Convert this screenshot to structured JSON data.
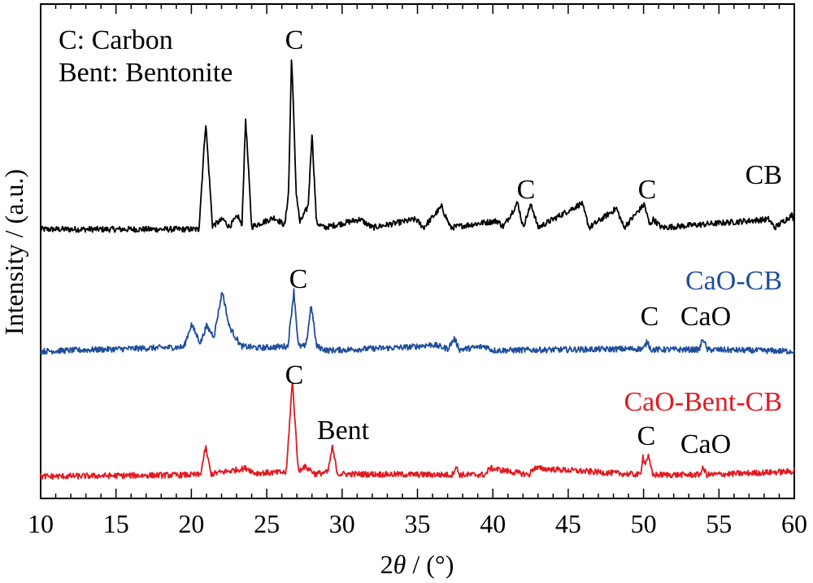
{
  "chart_data": {
    "type": "line",
    "xlabel_prefix": "2",
    "xlabel_theta": "θ",
    "xlabel_suffix": " / (°)",
    "ylabel": "Intensity / (a.u.)",
    "xlim": [
      10,
      60
    ],
    "xticks": [
      "10",
      "15",
      "20",
      "25",
      "30",
      "35",
      "40",
      "45",
      "50",
      "55",
      "60"
    ],
    "legend_note": [
      "C: Carbon",
      "Bent: Bentonite"
    ],
    "series": [
      {
        "name": "CB",
        "color": "#000000",
        "x": [
          10.0,
          20.5,
          20.95,
          21.4,
          22.1,
          22.5,
          23.1,
          23.35,
          23.6,
          24.0,
          25.5,
          26.2,
          26.45,
          26.65,
          26.95,
          27.2,
          27.75,
          28.0,
          28.3,
          28.8,
          31.2,
          32.0,
          34.9,
          35.4,
          36.6,
          37.2,
          39.4,
          40.3,
          40.7,
          41.65,
          42.0,
          42.55,
          43.0,
          45.9,
          46.4,
          48.2,
          48.7,
          50.05,
          50.4,
          50.65,
          51.2,
          58.3,
          58.7,
          59.85,
          60.0
        ],
        "y": [
          0.0,
          0.0,
          1.28,
          0.04,
          0.12,
          0.03,
          0.16,
          0.03,
          1.32,
          0.03,
          0.14,
          0.05,
          0.45,
          2.1,
          0.45,
          0.08,
          0.28,
          1.15,
          0.08,
          0.02,
          0.12,
          0.02,
          0.12,
          0.02,
          0.27,
          0.02,
          0.08,
          0.1,
          0.03,
          0.32,
          0.03,
          0.3,
          0.02,
          0.31,
          0.02,
          0.25,
          0.02,
          0.3,
          0.05,
          0.12,
          0.02,
          0.12,
          0.02,
          0.17,
          0.1
        ]
      },
      {
        "name": "CaO-CB",
        "color": "#1f4e9c",
        "x": [
          10.0,
          19.5,
          20.0,
          20.6,
          21.0,
          21.5,
          22.05,
          22.5,
          23.3,
          24.5,
          26.4,
          26.8,
          27.1,
          27.6,
          27.95,
          28.3,
          29.0,
          34.5,
          36.0,
          37.0,
          37.45,
          37.8,
          39.5,
          40.0,
          50.0,
          50.25,
          50.5,
          53.7,
          53.95,
          54.2,
          60.0
        ],
        "y": [
          0.0,
          0.05,
          0.32,
          0.1,
          0.3,
          0.18,
          0.72,
          0.3,
          0.06,
          0.04,
          0.06,
          0.72,
          0.06,
          0.06,
          0.56,
          0.06,
          0.01,
          0.05,
          0.08,
          0.03,
          0.15,
          0.02,
          0.06,
          0.01,
          0.03,
          0.12,
          0.02,
          0.02,
          0.16,
          0.02,
          0.0
        ]
      },
      {
        "name": "CaO-Bent-CB",
        "color": "#e11a22",
        "x": [
          10.0,
          20.6,
          20.95,
          21.3,
          23.0,
          23.7,
          24.2,
          26.3,
          26.7,
          27.1,
          27.4,
          27.9,
          28.2,
          29.05,
          29.35,
          29.7,
          37.3,
          37.55,
          37.8,
          39.5,
          39.8,
          42.4,
          42.7,
          49.8,
          49.95,
          50.1,
          50.3,
          50.6,
          53.7,
          53.95,
          54.2,
          59.9,
          60.0
        ],
        "y": [
          0.0,
          0.02,
          0.35,
          0.03,
          0.08,
          0.1,
          0.04,
          0.05,
          1.15,
          0.05,
          0.12,
          0.08,
          0.03,
          0.05,
          0.35,
          0.03,
          0.02,
          0.12,
          0.02,
          0.02,
          0.1,
          0.02,
          0.1,
          0.02,
          0.25,
          0.15,
          0.25,
          0.02,
          0.02,
          0.1,
          0.02,
          0.06,
          0.08
        ]
      }
    ],
    "series_labels": [
      {
        "text": "CB",
        "color": "#000000"
      },
      {
        "text": "CaO-CB",
        "color": "#1f4e9c"
      },
      {
        "text": "CaO-Bent-CB",
        "color": "#e11a22"
      }
    ],
    "annotations": [
      {
        "text": "C",
        "series": "CB"
      },
      {
        "text": "C",
        "series": "CB"
      },
      {
        "text": "C",
        "series": "CB"
      },
      {
        "text": "C",
        "series": "CaO-CB"
      },
      {
        "text": "C",
        "series": "CaO-CB"
      },
      {
        "text": "CaO",
        "series": "CaO-CB"
      },
      {
        "text": "C",
        "series": "CaO-Bent-CB"
      },
      {
        "text": "Bent",
        "series": "CaO-Bent-CB"
      },
      {
        "text": "C",
        "series": "CaO-Bent-CB"
      },
      {
        "text": "CaO",
        "series": "CaO-Bent-CB"
      }
    ]
  }
}
